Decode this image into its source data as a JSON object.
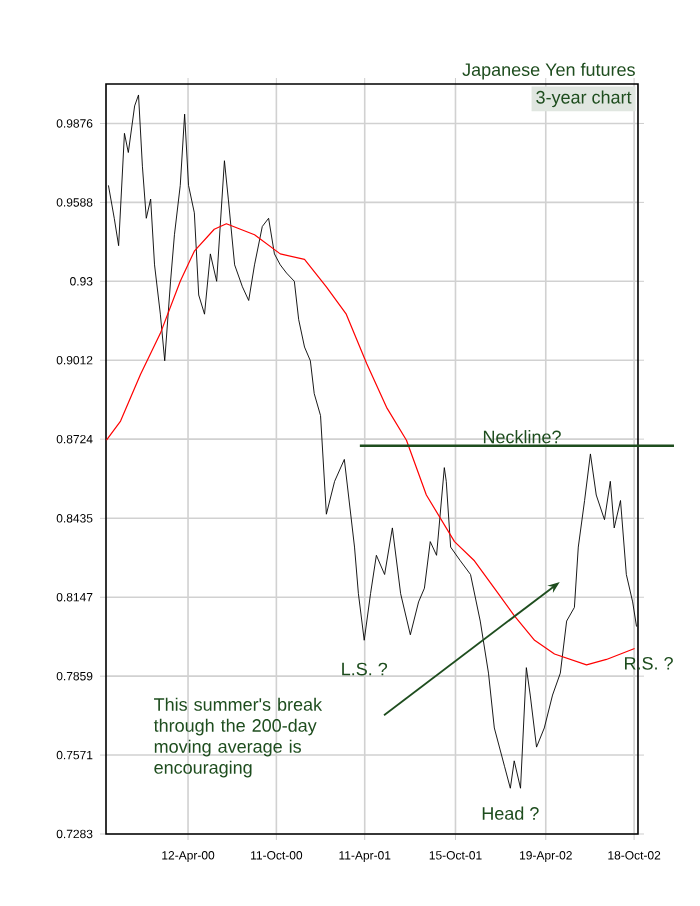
{
  "chart_data": {
    "type": "line",
    "title": "Japanese Yen futures",
    "subtitle": "3-year chart",
    "xlim": [
      "1999-10-26",
      "2002-10-26"
    ],
    "ylim": [
      0.7283,
      1.002
    ],
    "xticks": [
      {
        "value": "2000-04-12",
        "label": "12-Apr-00"
      },
      {
        "value": "2000-10-11",
        "label": "11-Oct-00"
      },
      {
        "value": "2001-04-11",
        "label": "11-Apr-01"
      },
      {
        "value": "2001-10-15",
        "label": "15-Oct-01"
      },
      {
        "value": "2002-04-19",
        "label": "19-Apr-02"
      },
      {
        "value": "2002-10-18",
        "label": "18-Oct-02"
      }
    ],
    "yticks": [
      0.7283,
      0.7571,
      0.7859,
      0.8147,
      0.8435,
      0.8724,
      0.9012,
      0.93,
      0.9588,
      0.9876
    ],
    "grid": true,
    "series": [
      {
        "color": "#000000",
        "x": [
          "1999-10-31",
          "1999-11-12",
          "1999-11-21",
          "1999-12-03",
          "1999-12-11",
          "1999-12-24",
          "2000-01-01",
          "2000-01-09",
          "2000-01-17",
          "2000-01-26",
          "2000-02-03",
          "2000-02-15",
          "2000-02-24",
          "2000-03-07",
          "2000-03-15",
          "2000-03-27",
          "2000-04-05",
          "2000-04-13",
          "2000-04-25",
          "2000-05-04",
          "2000-05-16",
          "2000-05-28",
          "2000-06-10",
          "2000-06-26",
          "2000-07-04",
          "2000-07-17",
          "2000-08-02",
          "2000-08-15",
          "2000-08-27",
          "2000-09-12",
          "2000-09-25",
          "2000-10-07",
          "2000-10-19",
          "2000-11-01",
          "2000-11-17",
          "2000-11-26",
          "2000-12-08",
          "2000-12-20",
          "2000-12-28",
          "2001-01-10",
          "2001-01-22",
          "2001-02-08",
          "2001-02-28",
          "2001-03-21",
          "2001-03-29",
          "2001-04-10",
          "2001-04-23",
          "2001-05-05",
          "2001-05-22",
          "2001-06-07",
          "2001-06-24",
          "2001-07-14",
          "2001-07-31",
          "2001-08-12",
          "2001-08-24",
          "2001-09-06",
          "2001-09-22",
          "2001-09-26",
          "2001-10-05",
          "2001-10-25",
          "2001-11-15",
          "2001-12-05",
          "2001-12-22",
          "2002-01-03",
          "2002-01-24",
          "2002-02-05",
          "2002-02-13",
          "2002-02-26",
          "2002-03-10",
          "2002-03-18",
          "2002-03-31",
          "2002-04-16",
          "2002-05-03",
          "2002-05-19",
          "2002-06-01",
          "2002-06-17",
          "2002-06-25",
          "2002-07-08",
          "2002-07-20",
          "2002-08-01",
          "2002-08-18",
          "2002-08-30",
          "2002-09-07",
          "2002-09-20",
          "2002-10-02",
          "2002-10-15",
          "2002-10-23"
        ],
        "values": [
          0.965,
          0.953,
          0.943,
          0.984,
          0.977,
          0.994,
          0.998,
          0.972,
          0.953,
          0.96,
          0.936,
          0.918,
          0.901,
          0.93,
          0.947,
          0.965,
          0.991,
          0.965,
          0.955,
          0.925,
          0.918,
          0.94,
          0.93,
          0.974,
          0.96,
          0.936,
          0.928,
          0.923,
          0.936,
          0.95,
          0.953,
          0.94,
          0.936,
          0.933,
          0.93,
          0.916,
          0.906,
          0.901,
          0.889,
          0.881,
          0.845,
          0.857,
          0.865,
          0.833,
          0.816,
          0.799,
          0.816,
          0.83,
          0.823,
          0.84,
          0.816,
          0.801,
          0.813,
          0.818,
          0.835,
          0.83,
          0.862,
          0.857,
          0.833,
          0.828,
          0.823,
          0.806,
          0.787,
          0.767,
          0.753,
          0.745,
          0.755,
          0.745,
          0.789,
          0.779,
          0.76,
          0.767,
          0.779,
          0.787,
          0.806,
          0.811,
          0.833,
          0.85,
          0.867,
          0.852,
          0.843,
          0.857,
          0.84,
          0.85,
          0.823,
          0.813,
          0.804
        ]
      },
      {
        "color": "#ff0000",
        "x": [
          "1999-10-27",
          "1999-11-25",
          "2000-01-05",
          "2000-02-15",
          "2000-03-27",
          "2000-04-25",
          "2000-06-05",
          "2000-06-30",
          "2000-08-27",
          "2000-10-19",
          "2000-12-08",
          "2001-01-22",
          "2001-03-04",
          "2001-04-15",
          "2001-05-26",
          "2001-07-06",
          "2001-08-16",
          "2001-10-13",
          "2001-11-23",
          "2002-01-03",
          "2002-02-13",
          "2002-03-27",
          "2002-05-07",
          "2002-07-12",
          "2002-08-22",
          "2002-10-19"
        ],
        "values": [
          0.872,
          0.879,
          0.896,
          0.911,
          0.93,
          0.941,
          0.949,
          0.951,
          0.947,
          0.94,
          0.938,
          0.928,
          0.918,
          0.9,
          0.884,
          0.872,
          0.852,
          0.835,
          0.828,
          0.818,
          0.808,
          0.799,
          0.794,
          0.79,
          0.792,
          0.796
        ]
      }
    ],
    "ref_lines": [
      {
        "axis": "y",
        "value": 0.87,
        "label": "Neckline?",
        "color": "#1e4d1e"
      }
    ],
    "annotations": [
      {
        "text": "L.S. ?",
        "x": "2001-04-10",
        "y": 0.799
      },
      {
        "text": "Head ?",
        "x": "2002-02-05",
        "y": 0.745
      },
      {
        "text": "R.S. ?",
        "x": "2002-10-23",
        "y": 0.804
      },
      "This summer's break through the 200-day moving average is encouraging"
    ]
  }
}
